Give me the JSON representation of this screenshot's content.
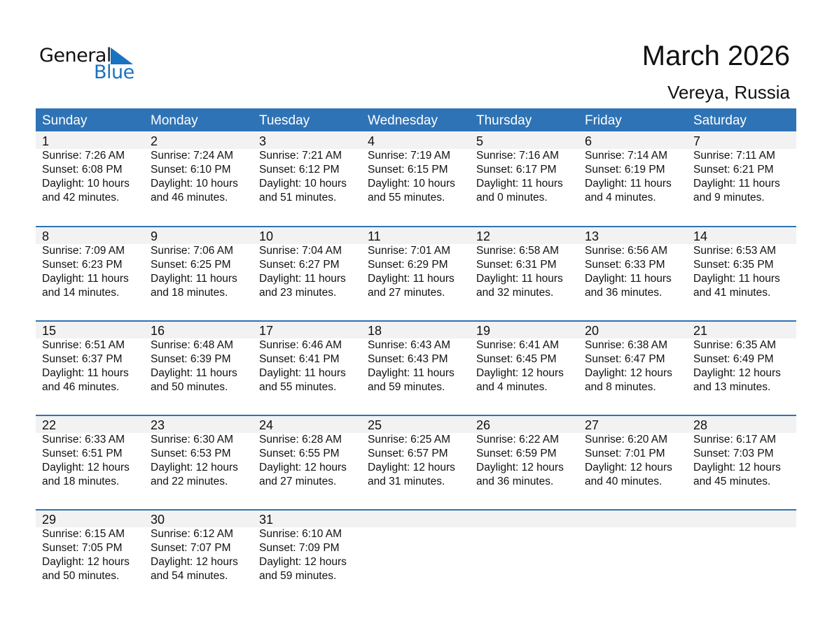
{
  "logo": {
    "text1": "General",
    "text2": "Blue",
    "color": "#1a73c0"
  },
  "title": "March 2026",
  "location": "Vereya, Russia",
  "header_color": "#2e73b5",
  "weekdays": [
    "Sunday",
    "Monday",
    "Tuesday",
    "Wednesday",
    "Thursday",
    "Friday",
    "Saturday"
  ],
  "weeks": [
    [
      {
        "day": "1",
        "lines": [
          "Sunrise: 7:26 AM",
          "Sunset: 6:08 PM",
          "Daylight: 10 hours",
          "and 42 minutes."
        ]
      },
      {
        "day": "2",
        "lines": [
          "Sunrise: 7:24 AM",
          "Sunset: 6:10 PM",
          "Daylight: 10 hours",
          "and 46 minutes."
        ]
      },
      {
        "day": "3",
        "lines": [
          "Sunrise: 7:21 AM",
          "Sunset: 6:12 PM",
          "Daylight: 10 hours",
          "and 51 minutes."
        ]
      },
      {
        "day": "4",
        "lines": [
          "Sunrise: 7:19 AM",
          "Sunset: 6:15 PM",
          "Daylight: 10 hours",
          "and 55 minutes."
        ]
      },
      {
        "day": "5",
        "lines": [
          "Sunrise: 7:16 AM",
          "Sunset: 6:17 PM",
          "Daylight: 11 hours",
          "and 0 minutes."
        ]
      },
      {
        "day": "6",
        "lines": [
          "Sunrise: 7:14 AM",
          "Sunset: 6:19 PM",
          "Daylight: 11 hours",
          "and 4 minutes."
        ]
      },
      {
        "day": "7",
        "lines": [
          "Sunrise: 7:11 AM",
          "Sunset: 6:21 PM",
          "Daylight: 11 hours",
          "and 9 minutes."
        ]
      }
    ],
    [
      {
        "day": "8",
        "lines": [
          "Sunrise: 7:09 AM",
          "Sunset: 6:23 PM",
          "Daylight: 11 hours",
          "and 14 minutes."
        ]
      },
      {
        "day": "9",
        "lines": [
          "Sunrise: 7:06 AM",
          "Sunset: 6:25 PM",
          "Daylight: 11 hours",
          "and 18 minutes."
        ]
      },
      {
        "day": "10",
        "lines": [
          "Sunrise: 7:04 AM",
          "Sunset: 6:27 PM",
          "Daylight: 11 hours",
          "and 23 minutes."
        ]
      },
      {
        "day": "11",
        "lines": [
          "Sunrise: 7:01 AM",
          "Sunset: 6:29 PM",
          "Daylight: 11 hours",
          "and 27 minutes."
        ]
      },
      {
        "day": "12",
        "lines": [
          "Sunrise: 6:58 AM",
          "Sunset: 6:31 PM",
          "Daylight: 11 hours",
          "and 32 minutes."
        ]
      },
      {
        "day": "13",
        "lines": [
          "Sunrise: 6:56 AM",
          "Sunset: 6:33 PM",
          "Daylight: 11 hours",
          "and 36 minutes."
        ]
      },
      {
        "day": "14",
        "lines": [
          "Sunrise: 6:53 AM",
          "Sunset: 6:35 PM",
          "Daylight: 11 hours",
          "and 41 minutes."
        ]
      }
    ],
    [
      {
        "day": "15",
        "lines": [
          "Sunrise: 6:51 AM",
          "Sunset: 6:37 PM",
          "Daylight: 11 hours",
          "and 46 minutes."
        ]
      },
      {
        "day": "16",
        "lines": [
          "Sunrise: 6:48 AM",
          "Sunset: 6:39 PM",
          "Daylight: 11 hours",
          "and 50 minutes."
        ]
      },
      {
        "day": "17",
        "lines": [
          "Sunrise: 6:46 AM",
          "Sunset: 6:41 PM",
          "Daylight: 11 hours",
          "and 55 minutes."
        ]
      },
      {
        "day": "18",
        "lines": [
          "Sunrise: 6:43 AM",
          "Sunset: 6:43 PM",
          "Daylight: 11 hours",
          "and 59 minutes."
        ]
      },
      {
        "day": "19",
        "lines": [
          "Sunrise: 6:41 AM",
          "Sunset: 6:45 PM",
          "Daylight: 12 hours",
          "and 4 minutes."
        ]
      },
      {
        "day": "20",
        "lines": [
          "Sunrise: 6:38 AM",
          "Sunset: 6:47 PM",
          "Daylight: 12 hours",
          "and 8 minutes."
        ]
      },
      {
        "day": "21",
        "lines": [
          "Sunrise: 6:35 AM",
          "Sunset: 6:49 PM",
          "Daylight: 12 hours",
          "and 13 minutes."
        ]
      }
    ],
    [
      {
        "day": "22",
        "lines": [
          "Sunrise: 6:33 AM",
          "Sunset: 6:51 PM",
          "Daylight: 12 hours",
          "and 18 minutes."
        ]
      },
      {
        "day": "23",
        "lines": [
          "Sunrise: 6:30 AM",
          "Sunset: 6:53 PM",
          "Daylight: 12 hours",
          "and 22 minutes."
        ]
      },
      {
        "day": "24",
        "lines": [
          "Sunrise: 6:28 AM",
          "Sunset: 6:55 PM",
          "Daylight: 12 hours",
          "and 27 minutes."
        ]
      },
      {
        "day": "25",
        "lines": [
          "Sunrise: 6:25 AM",
          "Sunset: 6:57 PM",
          "Daylight: 12 hours",
          "and 31 minutes."
        ]
      },
      {
        "day": "26",
        "lines": [
          "Sunrise: 6:22 AM",
          "Sunset: 6:59 PM",
          "Daylight: 12 hours",
          "and 36 minutes."
        ]
      },
      {
        "day": "27",
        "lines": [
          "Sunrise: 6:20 AM",
          "Sunset: 7:01 PM",
          "Daylight: 12 hours",
          "and 40 minutes."
        ]
      },
      {
        "day": "28",
        "lines": [
          "Sunrise: 6:17 AM",
          "Sunset: 7:03 PM",
          "Daylight: 12 hours",
          "and 45 minutes."
        ]
      }
    ],
    [
      {
        "day": "29",
        "lines": [
          "Sunrise: 6:15 AM",
          "Sunset: 7:05 PM",
          "Daylight: 12 hours",
          "and 50 minutes."
        ]
      },
      {
        "day": "30",
        "lines": [
          "Sunrise: 6:12 AM",
          "Sunset: 7:07 PM",
          "Daylight: 12 hours",
          "and 54 minutes."
        ]
      },
      {
        "day": "31",
        "lines": [
          "Sunrise: 6:10 AM",
          "Sunset: 7:09 PM",
          "Daylight: 12 hours",
          "and 59 minutes."
        ]
      }
    ]
  ]
}
